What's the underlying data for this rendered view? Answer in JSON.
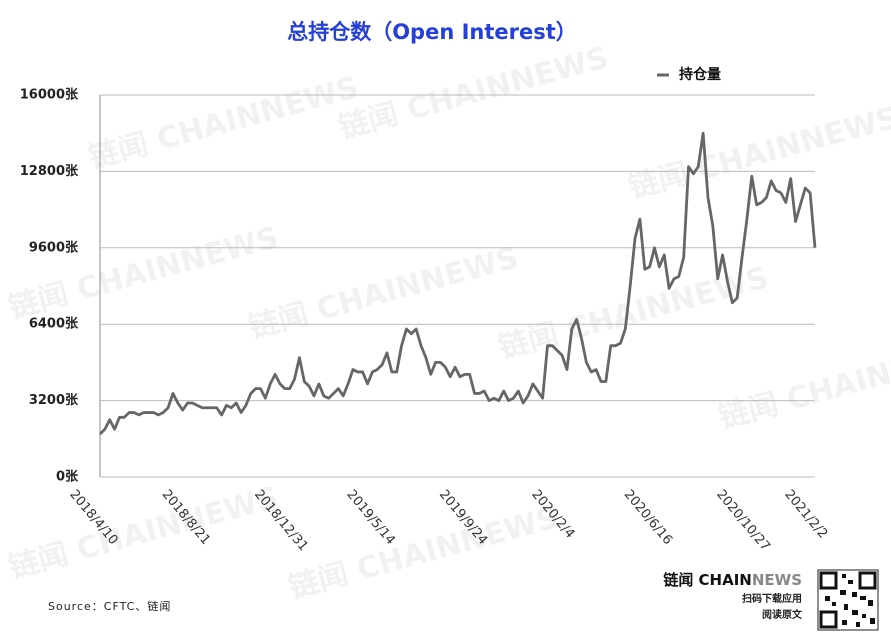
{
  "chart_data": {
    "type": "line",
    "title": "总持仓数（Open Interest）",
    "source": "Source：CFTC、链闻",
    "watermark": "链闻 CHAINNEWS",
    "logo": {
      "main": "链闻 CHAIN",
      "accent": "NEWS",
      "line1": "扫码下载应用",
      "line2": "阅读原文"
    },
    "legend": "top-right",
    "grid": true,
    "ylim": [
      0,
      16000
    ],
    "yticks": [
      {
        "value": 0,
        "label": "0张"
      },
      {
        "value": 3200,
        "label": "3200张"
      },
      {
        "value": 6400,
        "label": "6400张"
      },
      {
        "value": 9600,
        "label": "9600张"
      },
      {
        "value": 12800,
        "label": "12800张"
      },
      {
        "value": 16000,
        "label": "16000张"
      }
    ],
    "categories": [
      "2018/4/10",
      null,
      null,
      null,
      null,
      null,
      null,
      null,
      null,
      null,
      null,
      null,
      null,
      null,
      null,
      null,
      null,
      null,
      null,
      "2018/8/21",
      null,
      null,
      null,
      null,
      null,
      null,
      null,
      null,
      null,
      null,
      null,
      null,
      null,
      null,
      null,
      null,
      null,
      null,
      "2018/12/31",
      null,
      null,
      null,
      null,
      null,
      null,
      null,
      null,
      null,
      null,
      null,
      null,
      null,
      null,
      null,
      null,
      null,
      null,
      "2019/5/14",
      null,
      null,
      null,
      null,
      null,
      null,
      null,
      null,
      null,
      null,
      null,
      null,
      null,
      null,
      null,
      null,
      null,
      null,
      "2019/9/24",
      null,
      null,
      null,
      null,
      null,
      null,
      null,
      null,
      null,
      null,
      null,
      null,
      null,
      null,
      null,
      null,
      null,
      null,
      "2020/2/4",
      null,
      null,
      null,
      null,
      null,
      null,
      null,
      null,
      null,
      null,
      null,
      null,
      null,
      null,
      null,
      null,
      null,
      null,
      "2020/6/16",
      null,
      null,
      null,
      null,
      null,
      null,
      null,
      null,
      null,
      null,
      null,
      null,
      null,
      null,
      null,
      null,
      null,
      null,
      "2020/10/27",
      null,
      null,
      null,
      null,
      null,
      null,
      null,
      null,
      null,
      null,
      null,
      null,
      null,
      "2021/2/2"
    ],
    "series": [
      {
        "name": "持仓量",
        "color": "#666666",
        "values": [
          1800,
          2000,
          2400,
          2000,
          2500,
          2500,
          2700,
          2700,
          2600,
          2700,
          2700,
          2700,
          2600,
          2700,
          2900,
          3500,
          3100,
          2800,
          3100,
          3100,
          3000,
          2900,
          2900,
          2900,
          2900,
          2600,
          3000,
          2900,
          3100,
          2700,
          3000,
          3500,
          3700,
          3700,
          3300,
          3900,
          4300,
          3900,
          3700,
          3700,
          4100,
          5000,
          4000,
          3800,
          3400,
          3900,
          3400,
          3300,
          3500,
          3700,
          3400,
          3900,
          4500,
          4400,
          4400,
          3900,
          4400,
          4500,
          4700,
          5200,
          4400,
          4400,
          5500,
          6200,
          6000,
          6200,
          5500,
          5000,
          4300,
          4800,
          4800,
          4600,
          4200,
          4600,
          4200,
          4300,
          4300,
          3500,
          3500,
          3600,
          3200,
          3300,
          3200,
          3600,
          3200,
          3300,
          3600,
          3100,
          3400,
          3900,
          3600,
          3300,
          5500,
          5500,
          5300,
          5100,
          4500,
          6200,
          6600,
          5800,
          4800,
          4400,
          4500,
          4000,
          4000,
          5500,
          5500,
          5600,
          6200,
          8000,
          10000,
          10800,
          8700,
          8800,
          9600,
          8800,
          9300,
          7900,
          8300,
          8400,
          9200,
          13000,
          12700,
          13000,
          14400,
          11700,
          10500,
          8300,
          9300,
          8200,
          7300,
          7500,
          9200,
          10800,
          12600,
          11400,
          11500,
          11700,
          12400,
          12000,
          11900,
          11500,
          12500,
          10700,
          11400,
          12100,
          11900,
          9600
        ]
      }
    ]
  }
}
